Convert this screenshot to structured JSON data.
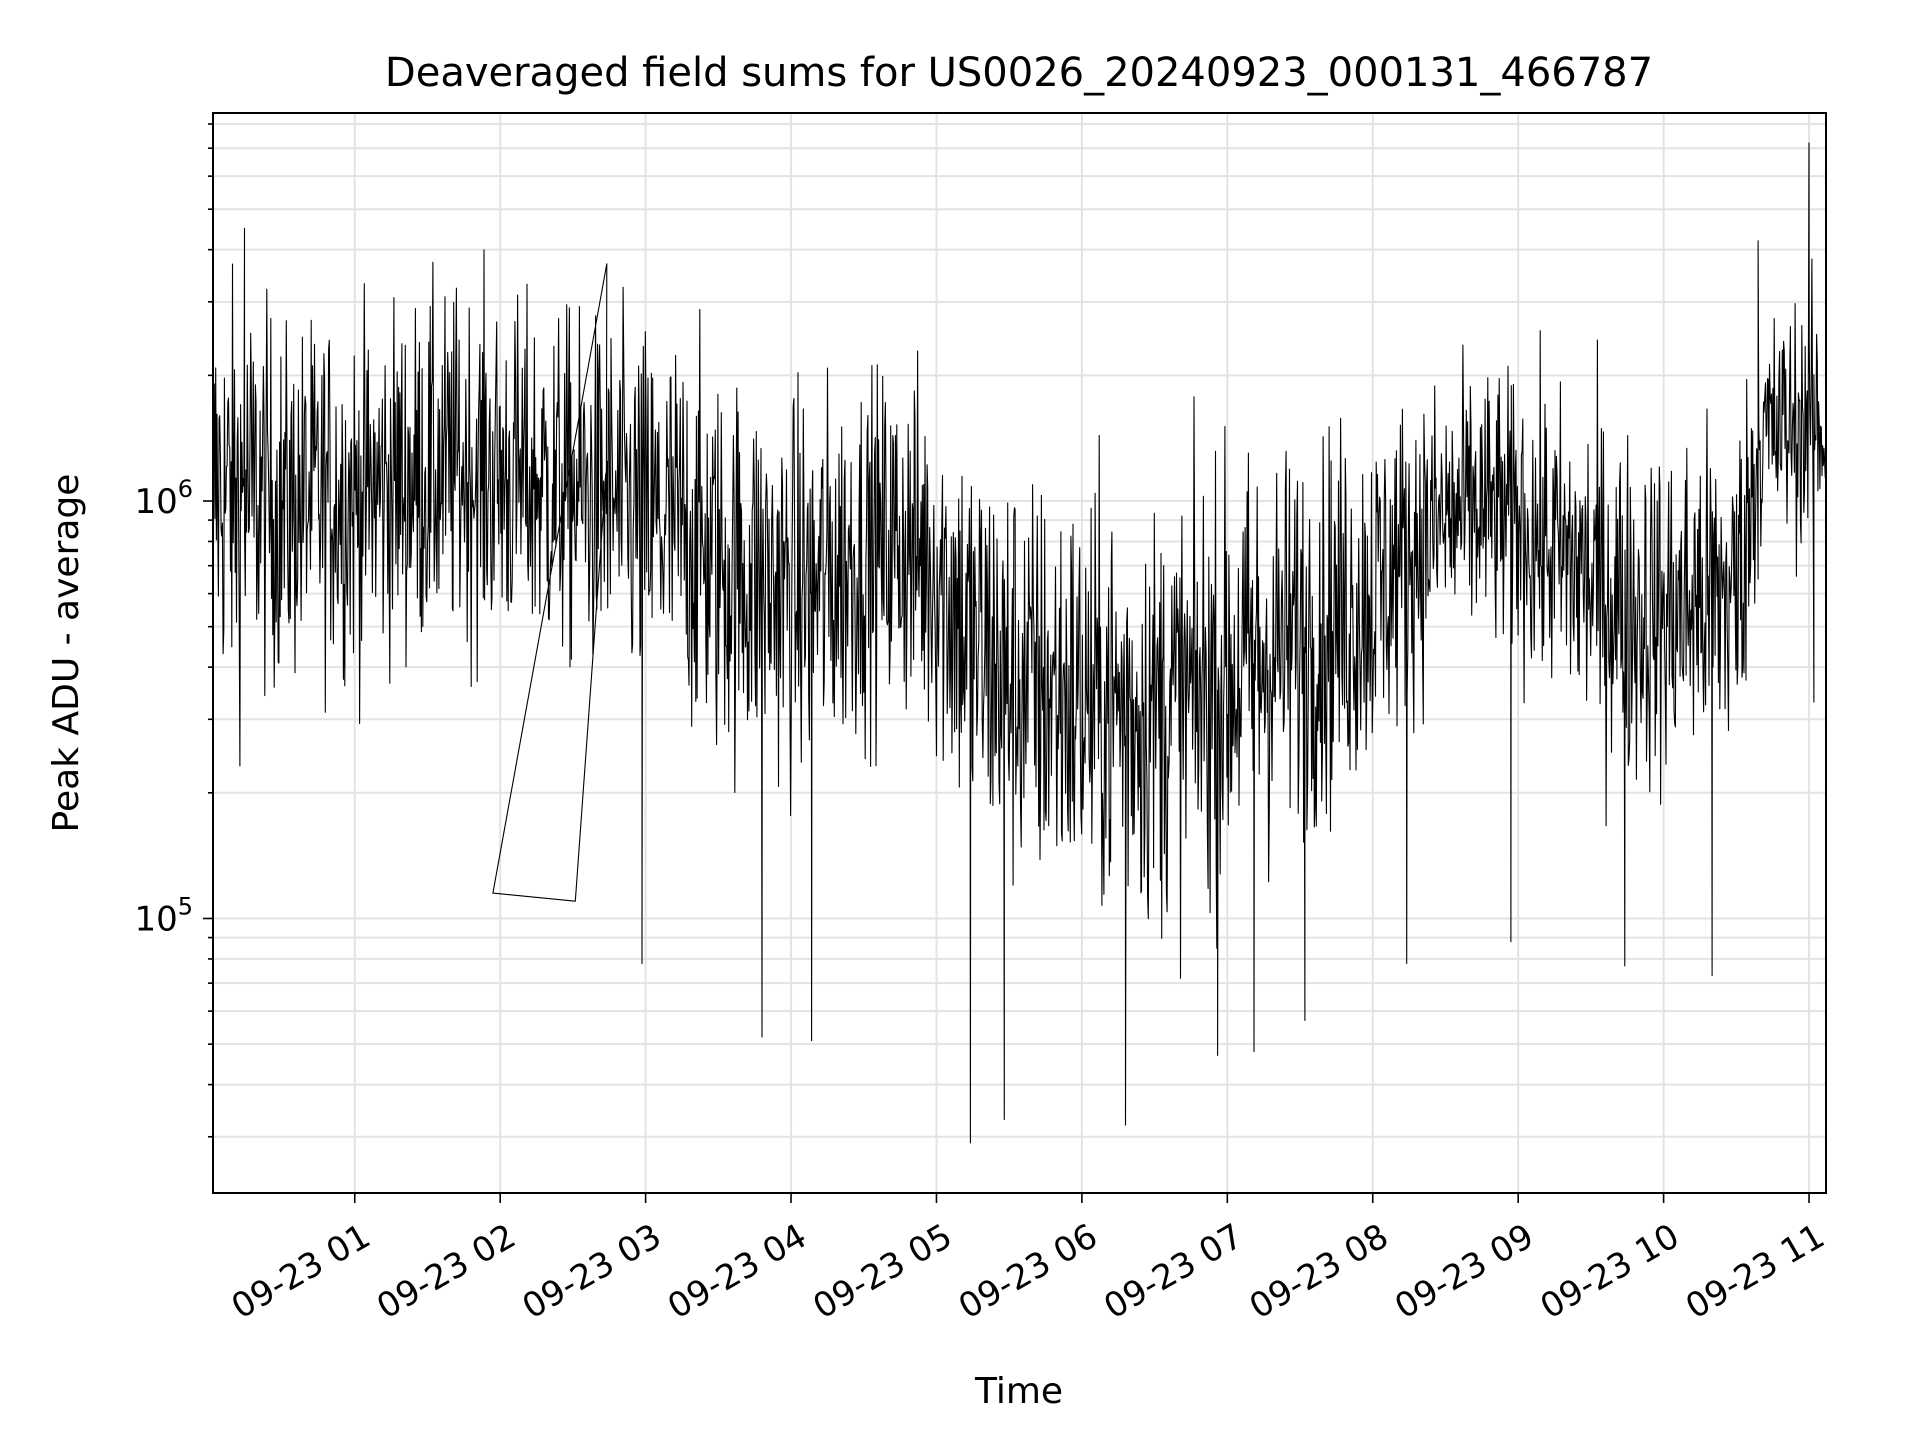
{
  "chart_data": {
    "type": "line",
    "title": "Deaveraged field sums for US0026_20240923_000131_466787",
    "xlabel": "Time",
    "ylabel": "Peak ADU - average",
    "yscale": "log",
    "ylim": [
      22000,
      8500000
    ],
    "xlim": [
      "2024-09-23T00:01:31",
      "2024-09-23T11:07:00"
    ],
    "grid": true,
    "line_color": "#000000",
    "x_ticks": [
      {
        "label": "09-23 01",
        "value": "2024-09-23T01:00:00"
      },
      {
        "label": "09-23 02",
        "value": "2024-09-23T02:00:00"
      },
      {
        "label": "09-23 03",
        "value": "2024-09-23T03:00:00"
      },
      {
        "label": "09-23 04",
        "value": "2024-09-23T04:00:00"
      },
      {
        "label": "09-23 05",
        "value": "2024-09-23T05:00:00"
      },
      {
        "label": "09-23 06",
        "value": "2024-09-23T06:00:00"
      },
      {
        "label": "09-23 07",
        "value": "2024-09-23T07:00:00"
      },
      {
        "label": "09-23 08",
        "value": "2024-09-23T08:00:00"
      },
      {
        "label": "09-23 09",
        "value": "2024-09-23T09:00:00"
      },
      {
        "label": "09-23 10",
        "value": "2024-09-23T10:00:00"
      },
      {
        "label": "09-23 11",
        "value": "2024-09-23T11:00:00"
      }
    ],
    "y_ticks": [
      {
        "value": 100000,
        "base": "10",
        "exp": "5"
      },
      {
        "value": 1000000,
        "base": "10",
        "exp": "6"
      }
    ],
    "series": [
      {
        "x": [
          "2024-09-23T00:01:31",
          "2024-09-23T00:10:00",
          "2024-09-23T00:20:00",
          "2024-09-23T00:30:00",
          "2024-09-23T00:40:00",
          "2024-09-23T00:50:00",
          "2024-09-23T01:00:00",
          "2024-09-23T01:15:00",
          "2024-09-23T01:30:00",
          "2024-09-23T01:45:00",
          "2024-09-23T02:00:00",
          "2024-09-23T02:15:00",
          "2024-09-23T02:30:00",
          "2024-09-23T02:45:00",
          "2024-09-23T03:00:00",
          "2024-09-23T03:15:00",
          "2024-09-23T03:30:00",
          "2024-09-23T03:45:00",
          "2024-09-23T04:00:00",
          "2024-09-23T04:15:00",
          "2024-09-23T04:30:00",
          "2024-09-23T04:45:00",
          "2024-09-23T05:00:00",
          "2024-09-23T05:15:00",
          "2024-09-23T05:30:00",
          "2024-09-23T05:45:00",
          "2024-09-23T06:00:00",
          "2024-09-23T06:15:00",
          "2024-09-23T06:30:00",
          "2024-09-23T06:45:00",
          "2024-09-23T07:00:00",
          "2024-09-23T07:15:00",
          "2024-09-23T07:30:00",
          "2024-09-23T07:45:00",
          "2024-09-23T08:00:00",
          "2024-09-23T08:15:00",
          "2024-09-23T08:30:00",
          "2024-09-23T08:45:00",
          "2024-09-23T09:00:00",
          "2024-09-23T09:15:00",
          "2024-09-23T09:30:00",
          "2024-09-23T09:45:00",
          "2024-09-23T10:00:00",
          "2024-09-23T10:15:00",
          "2024-09-23T10:30:00",
          "2024-09-23T10:40:00",
          "2024-09-23T10:50:00",
          "2024-09-23T11:00:00",
          "2024-09-23T11:07:00"
        ],
        "y": [
          1100000,
          1000000,
          1050000,
          950000,
          1000000,
          1050000,
          1000000,
          1100000,
          1150000,
          1200000,
          1150000,
          1100000,
          1050000,
          1000000,
          900000,
          850000,
          700000,
          650000,
          600000,
          650000,
          750000,
          800000,
          700000,
          450000,
          380000,
          350000,
          330000,
          320000,
          310000,
          330000,
          380000,
          420000,
          470000,
          520000,
          600000,
          750000,
          900000,
          950000,
          900000,
          750000,
          650000,
          550000,
          520000,
          580000,
          600000,
          1400000,
          1500000,
          1550000,
          1450000
        ],
        "spread": [
          0.55,
          0.6,
          0.55,
          0.5,
          0.5,
          0.5,
          0.5,
          0.5,
          0.5,
          0.5,
          0.5,
          0.5,
          0.5,
          0.5,
          0.55,
          0.55,
          0.55,
          0.55,
          0.55,
          0.55,
          0.5,
          0.5,
          0.55,
          0.6,
          0.6,
          0.6,
          0.6,
          0.6,
          0.6,
          0.6,
          0.6,
          0.6,
          0.55,
          0.55,
          0.5,
          0.45,
          0.4,
          0.4,
          0.4,
          0.45,
          0.5,
          0.5,
          0.5,
          0.5,
          0.5,
          0.35,
          0.35,
          0.35,
          0.35
        ],
        "n_points": 2400,
        "spikes": [
          [
            "2024-09-23T00:14:30",
            4500000
          ],
          [
            "2024-09-23T02:44:00",
            3700000
          ],
          [
            "2024-09-23T01:57:00",
            115000
          ],
          [
            "2024-09-23T02:31:00",
            110000
          ],
          [
            "2024-09-23T02:58:30",
            78000
          ],
          [
            "2024-09-23T03:48:00",
            52000
          ],
          [
            "2024-09-23T04:08:30",
            51000
          ],
          [
            "2024-09-23T05:14:00",
            29000
          ],
          [
            "2024-09-23T05:28:00",
            33000
          ],
          [
            "2024-09-23T06:18:00",
            32000
          ],
          [
            "2024-09-23T06:56:00",
            47000
          ],
          [
            "2024-09-23T07:11:00",
            48000
          ],
          [
            "2024-09-23T07:32:00",
            57000
          ],
          [
            "2024-09-23T08:14:00",
            78000
          ],
          [
            "2024-09-23T08:57:00",
            88000
          ],
          [
            "2024-09-23T09:44:00",
            77000
          ],
          [
            "2024-09-23T10:20:00",
            73000
          ],
          [
            "2024-09-23T10:39:00",
            4200000
          ],
          [
            "2024-09-23T11:00:00",
            7200000
          ],
          [
            "2024-09-23T11:02:00",
            330000
          ]
        ]
      }
    ]
  }
}
